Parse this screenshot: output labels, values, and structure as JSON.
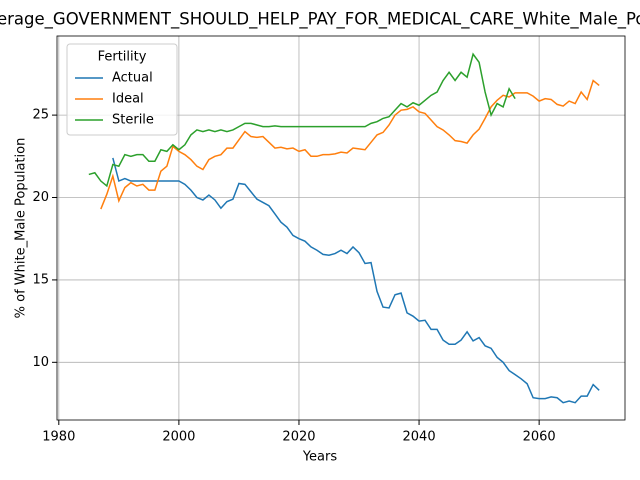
{
  "chart_data": {
    "type": "line",
    "title": "erage_GOVERNMENT_SHOULD_HELP_PAY_FOR_MEDICAL_CARE_White_Male_Po",
    "xlabel": "Years",
    "ylabel": "% of White_Male Population",
    "legend_title": "Fertility",
    "legend": "upper left",
    "grid": true,
    "xlim": [
      1979.7,
      2074.3
    ],
    "ylim": [
      6.5,
      29.8
    ],
    "xticks": [
      1980,
      2000,
      2020,
      2040,
      2060
    ],
    "yticks": [
      10,
      15,
      20,
      25
    ],
    "x": [
      1985,
      1986,
      1987,
      1988,
      1989,
      1990,
      1991,
      1992,
      1993,
      1994,
      1995,
      1996,
      1997,
      1998,
      1999,
      2000,
      2001,
      2002,
      2003,
      2004,
      2005,
      2006,
      2007,
      2008,
      2009,
      2010,
      2011,
      2012,
      2013,
      2014,
      2015,
      2016,
      2017,
      2018,
      2019,
      2020,
      2021,
      2022,
      2023,
      2024,
      2025,
      2026,
      2027,
      2028,
      2029,
      2030,
      2031,
      2032,
      2033,
      2034,
      2035,
      2036,
      2037,
      2038,
      2039,
      2040,
      2041,
      2042,
      2043,
      2044,
      2045,
      2046,
      2047,
      2048,
      2049,
      2050,
      2051,
      2052,
      2053,
      2054,
      2055,
      2056,
      2057,
      2058,
      2059,
      2060,
      2061,
      2062,
      2063,
      2064,
      2065,
      2066,
      2067,
      2068,
      2069,
      2070
    ],
    "series": [
      {
        "name": "Actual",
        "color": "#1f77b4",
        "values": [
          null,
          null,
          null,
          null,
          22.4,
          21.0,
          21.15,
          21.0,
          21.0,
          21.0,
          21.0,
          21.0,
          21.0,
          21.0,
          21.0,
          21.0,
          20.8,
          20.45,
          20.0,
          19.85,
          20.15,
          19.85,
          19.35,
          19.75,
          19.9,
          20.85,
          20.8,
          20.35,
          19.9,
          19.7,
          19.5,
          19.0,
          18.5,
          18.2,
          17.7,
          17.5,
          17.35,
          17.0,
          16.8,
          16.55,
          16.5,
          16.6,
          16.8,
          16.6,
          17.0,
          16.65,
          16.0,
          16.05,
          14.3,
          13.35,
          13.3,
          14.1,
          14.2,
          13.0,
          12.8,
          12.5,
          12.55,
          12.0,
          12.0,
          11.35,
          11.1,
          11.1,
          11.35,
          11.85,
          11.3,
          11.5,
          11.0,
          10.85,
          10.3,
          10.0,
          9.5,
          9.25,
          9.0,
          8.7,
          7.85,
          7.8,
          7.8,
          7.9,
          7.85,
          7.55,
          7.65,
          7.55,
          7.95,
          7.95,
          8.65,
          8.3
        ]
      },
      {
        "name": "Ideal",
        "color": "#ff7f0e",
        "values": [
          null,
          null,
          19.3,
          20.2,
          21.3,
          19.8,
          20.6,
          20.9,
          20.7,
          20.8,
          20.45,
          20.45,
          21.6,
          21.9,
          23.1,
          22.8,
          22.6,
          22.3,
          21.9,
          21.7,
          22.3,
          22.5,
          22.6,
          23.0,
          23.0,
          23.5,
          24.0,
          23.7,
          23.65,
          23.7,
          23.35,
          23.0,
          23.05,
          22.95,
          23.0,
          22.8,
          22.9,
          22.5,
          22.5,
          22.6,
          22.6,
          22.65,
          22.75,
          22.7,
          23.0,
          22.95,
          22.9,
          23.35,
          23.8,
          23.95,
          24.4,
          25.0,
          25.3,
          25.35,
          25.5,
          25.2,
          25.1,
          24.7,
          24.3,
          24.1,
          23.8,
          23.45,
          23.4,
          23.3,
          23.8,
          24.15,
          24.8,
          25.5,
          25.9,
          26.2,
          26.1,
          26.35,
          26.35,
          26.35,
          26.15,
          25.85,
          26.0,
          25.95,
          25.65,
          25.55,
          25.85,
          25.7,
          26.4,
          25.95,
          27.1,
          26.8
        ]
      },
      {
        "name": "Sterile",
        "color": "#2ca02c",
        "values": [
          21.4,
          21.5,
          21.0,
          20.7,
          22.0,
          21.9,
          22.6,
          22.5,
          22.6,
          22.6,
          22.2,
          22.2,
          22.9,
          22.8,
          23.2,
          22.9,
          23.2,
          23.8,
          24.1,
          24.0,
          24.1,
          24.0,
          24.1,
          24.0,
          24.1,
          24.3,
          24.5,
          24.5,
          24.4,
          24.3,
          24.3,
          24.35,
          24.3,
          24.3,
          24.3,
          24.3,
          24.3,
          24.3,
          24.3,
          24.3,
          24.3,
          24.3,
          24.3,
          24.3,
          24.3,
          24.3,
          24.3,
          24.5,
          24.6,
          24.8,
          24.9,
          25.3,
          25.7,
          25.5,
          25.75,
          25.6,
          25.9,
          26.2,
          26.4,
          27.1,
          27.6,
          27.1,
          27.6,
          27.3,
          28.7,
          28.2,
          26.4,
          25.0,
          25.7,
          25.5,
          26.6,
          26.0,
          null,
          null,
          null,
          null,
          null,
          null,
          null,
          null,
          null,
          null,
          null,
          null,
          null,
          null
        ]
      }
    ]
  }
}
